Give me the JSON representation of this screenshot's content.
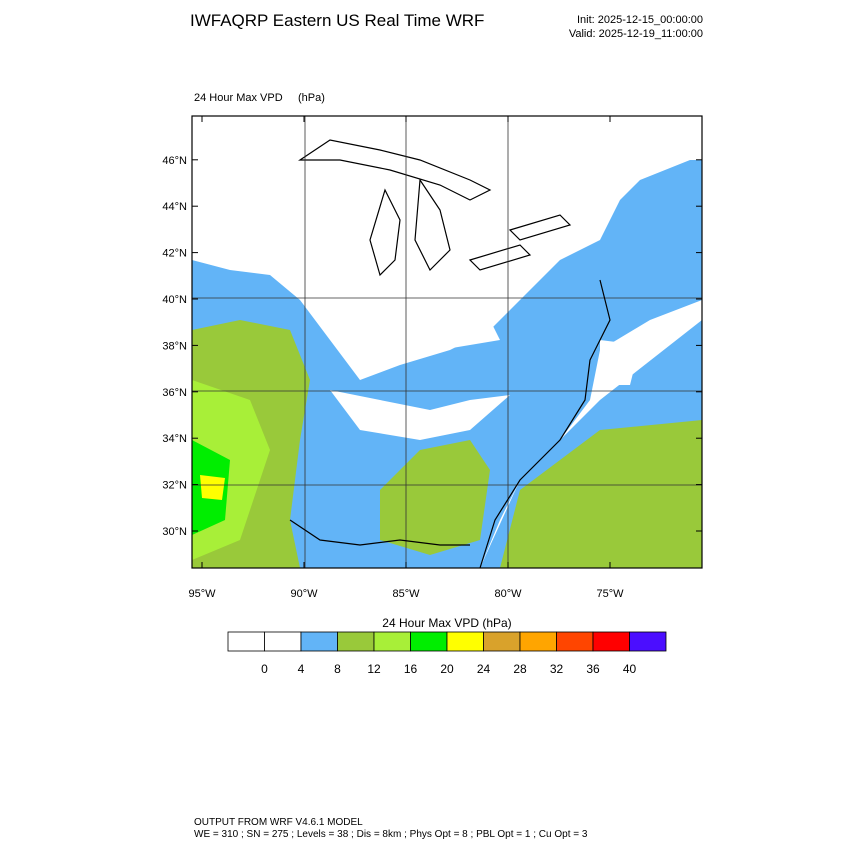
{
  "header": {
    "title": "IWFAQRP Eastern US Real Time WRF",
    "init": "Init: 2025-12-15_00:00:00",
    "valid": "Valid: 2025-12-19_11:00:00"
  },
  "map": {
    "label": "24 Hour Max VPD",
    "units": "(hPa)",
    "yticks": [
      {
        "value": 30,
        "label": "30°N"
      },
      {
        "value": 32,
        "label": "32°N"
      },
      {
        "value": 34,
        "label": "34°N"
      },
      {
        "value": 36,
        "label": "36°N"
      },
      {
        "value": 38,
        "label": "38°N"
      },
      {
        "value": 40,
        "label": "40°N"
      },
      {
        "value": 42,
        "label": "42°N"
      },
      {
        "value": 44,
        "label": "44°N"
      },
      {
        "value": 46,
        "label": "46°N"
      }
    ],
    "xticks": [
      {
        "value": -95,
        "label": "95°W"
      },
      {
        "value": -90,
        "label": "90°W"
      },
      {
        "value": -85,
        "label": "85°W"
      },
      {
        "value": -80,
        "label": "80°W"
      },
      {
        "value": -75,
        "label": "75°W"
      }
    ]
  },
  "colorbar": {
    "title": "24 Hour Max VPD  (hPa)",
    "levels": [
      0,
      4,
      8,
      12,
      16,
      20,
      24,
      28,
      32,
      36,
      40
    ],
    "colors": [
      "#ffffff",
      "#ffffff",
      "#62b4f7",
      "#99c93a",
      "#a8ef38",
      "#00ee00",
      "#ffff00",
      "#d9a22b",
      "#ffa500",
      "#ff4500",
      "#ff0000",
      "#4b0eff"
    ]
  },
  "footer": {
    "line1": "OUTPUT FROM WRF V4.6.1 MODEL",
    "line2": "WE = 310 ; SN = 275 ; Levels = 38 ; Dis = 8km ; Phys Opt = 8 ; PBL Opt = 1 ; Cu Opt = 3"
  }
}
